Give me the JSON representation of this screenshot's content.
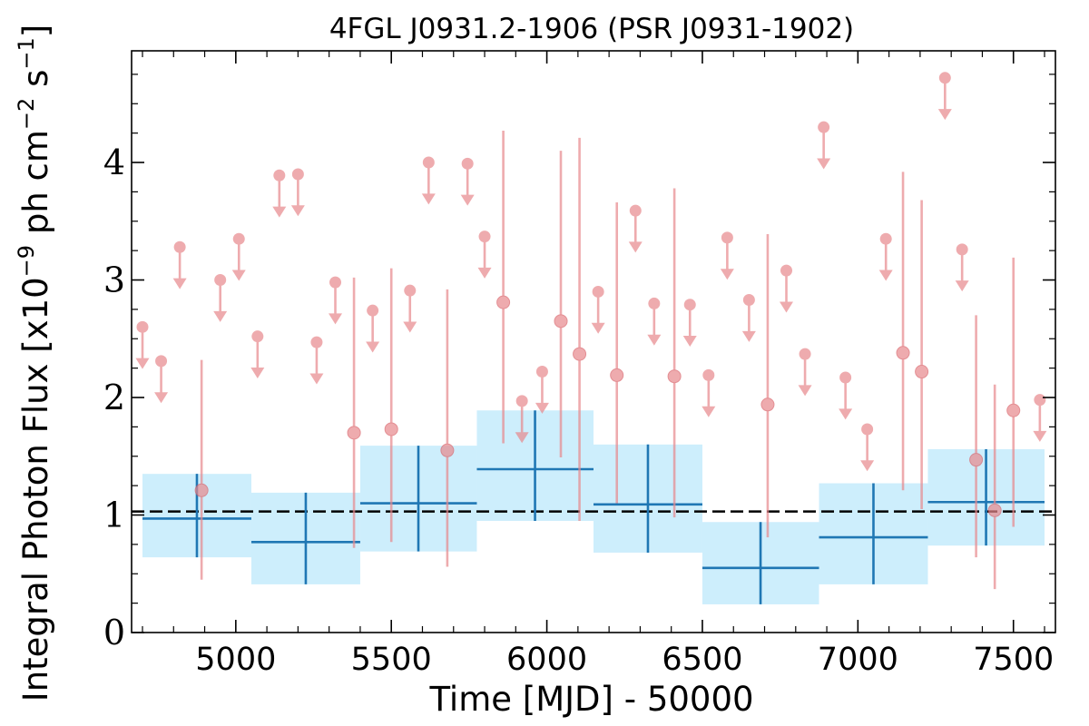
{
  "chart_data": {
    "type": "scatter",
    "title": "4FGL J0931.2-1906 (PSR J0931-1902)",
    "xlabel": "Time [MJD] - 50000",
    "ylabel_main": "Integral Photon Flux [x10",
    "ylabel_exp1": "−9",
    "ylabel_mid": " ph cm",
    "ylabel_exp2": "−2",
    "ylabel_s": " s",
    "ylabel_exp3": "−1",
    "ylabel_end": "]",
    "xlim": [
      4665,
      7635
    ],
    "ylim": [
      0,
      4.95
    ],
    "xticks": [
      {
        "value": 5000,
        "label": "5000"
      },
      {
        "value": 5500,
        "label": "5500"
      },
      {
        "value": 6000,
        "label": "6000"
      },
      {
        "value": 6500,
        "label": "6500"
      },
      {
        "value": 7000,
        "label": "7000"
      },
      {
        "value": 7500,
        "label": "7500"
      }
    ],
    "yticks": [
      {
        "value": 0,
        "label": "0"
      },
      {
        "value": 1,
        "label": "1"
      },
      {
        "value": 2,
        "label": "2"
      },
      {
        "value": 3,
        "label": "3"
      },
      {
        "value": 4,
        "label": "4"
      }
    ],
    "x_minor_step": 100,
    "y_minor_step": 0.25,
    "mean_flux": 1.03,
    "colors": {
      "short_bins": "#e8888c",
      "long_bins_line": "#1f77b4",
      "long_bins_fill": "#cdeefc",
      "mean_line": "#000000"
    },
    "series": [
      {
        "kind": "long_bins",
        "points": [
          {
            "x0": 4700,
            "x1": 5050,
            "xc": 4875,
            "y": 0.97,
            "ylo": 0.64,
            "yhi": 1.35
          },
          {
            "x0": 5050,
            "x1": 5400,
            "xc": 5225,
            "y": 0.77,
            "ylo": 0.41,
            "yhi": 1.19
          },
          {
            "x0": 5400,
            "x1": 5775,
            "xc": 5587,
            "y": 1.1,
            "ylo": 0.69,
            "yhi": 1.59
          },
          {
            "x0": 5775,
            "x1": 6150,
            "xc": 5962,
            "y": 1.39,
            "ylo": 0.95,
            "yhi": 1.89
          },
          {
            "x0": 6150,
            "x1": 6500,
            "xc": 6325,
            "y": 1.09,
            "ylo": 0.68,
            "yhi": 1.6
          },
          {
            "x0": 6500,
            "x1": 6875,
            "xc": 6687,
            "y": 0.55,
            "ylo": 0.24,
            "yhi": 0.94
          },
          {
            "x0": 6875,
            "x1": 7225,
            "xc": 7050,
            "y": 0.81,
            "ylo": 0.41,
            "yhi": 1.27
          },
          {
            "x0": 7225,
            "x1": 7600,
            "xc": 7412,
            "y": 1.11,
            "ylo": 0.74,
            "yhi": 1.56
          }
        ]
      },
      {
        "kind": "short_bins_upper_limits",
        "points": [
          {
            "x": 4700,
            "y": 2.6
          },
          {
            "x": 4760,
            "y": 2.31
          },
          {
            "x": 4820,
            "y": 3.28
          },
          {
            "x": 4950,
            "y": 3.0
          },
          {
            "x": 5010,
            "y": 3.35
          },
          {
            "x": 5070,
            "y": 2.52
          },
          {
            "x": 5140,
            "y": 3.89
          },
          {
            "x": 5200,
            "y": 3.9
          },
          {
            "x": 5260,
            "y": 2.47
          },
          {
            "x": 5320,
            "y": 2.98
          },
          {
            "x": 5440,
            "y": 2.74
          },
          {
            "x": 5560,
            "y": 2.91
          },
          {
            "x": 5620,
            "y": 4.0
          },
          {
            "x": 5745,
            "y": 3.99
          },
          {
            "x": 5800,
            "y": 3.37
          },
          {
            "x": 5920,
            "y": 1.97
          },
          {
            "x": 5985,
            "y": 2.22
          },
          {
            "x": 6165,
            "y": 2.9
          },
          {
            "x": 6285,
            "y": 3.59
          },
          {
            "x": 6345,
            "y": 2.8
          },
          {
            "x": 6460,
            "y": 2.79
          },
          {
            "x": 6520,
            "y": 2.19
          },
          {
            "x": 6580,
            "y": 3.36
          },
          {
            "x": 6650,
            "y": 2.83
          },
          {
            "x": 6770,
            "y": 3.08
          },
          {
            "x": 6830,
            "y": 2.37
          },
          {
            "x": 6890,
            "y": 4.3
          },
          {
            "x": 6960,
            "y": 2.17
          },
          {
            "x": 7030,
            "y": 1.73
          },
          {
            "x": 7090,
            "y": 3.35
          },
          {
            "x": 7280,
            "y": 4.72
          },
          {
            "x": 7335,
            "y": 3.26
          },
          {
            "x": 7585,
            "y": 1.98
          }
        ]
      },
      {
        "kind": "short_bins_detections",
        "points": [
          {
            "x": 4890,
            "y": 1.21,
            "ylo": 0.45,
            "yhi": 2.32
          },
          {
            "x": 5380,
            "y": 1.7,
            "ylo": 0.72,
            "yhi": 3.02
          },
          {
            "x": 5500,
            "y": 1.73,
            "ylo": 0.77,
            "yhi": 3.1
          },
          {
            "x": 5680,
            "y": 1.55,
            "ylo": 0.56,
            "yhi": 2.92
          },
          {
            "x": 5860,
            "y": 2.81,
            "ylo": 1.61,
            "yhi": 4.27
          },
          {
            "x": 6045,
            "y": 2.65,
            "ylo": 1.49,
            "yhi": 4.1
          },
          {
            "x": 6105,
            "y": 2.37,
            "ylo": 0.95,
            "yhi": 4.21
          },
          {
            "x": 6225,
            "y": 2.19,
            "ylo": 1.1,
            "yhi": 3.66
          },
          {
            "x": 6410,
            "y": 2.18,
            "ylo": 0.98,
            "yhi": 3.78
          },
          {
            "x": 6710,
            "y": 1.94,
            "ylo": 0.81,
            "yhi": 3.39
          },
          {
            "x": 7145,
            "y": 2.38,
            "ylo": 1.21,
            "yhi": 3.92
          },
          {
            "x": 7205,
            "y": 2.22,
            "ylo": 1.05,
            "yhi": 3.68
          },
          {
            "x": 7380,
            "y": 1.47,
            "ylo": 0.64,
            "yhi": 2.7
          },
          {
            "x": 7440,
            "y": 1.04,
            "ylo": 0.37,
            "yhi": 2.11
          },
          {
            "x": 7500,
            "y": 1.89,
            "ylo": 0.9,
            "yhi": 3.19
          }
        ]
      }
    ]
  }
}
